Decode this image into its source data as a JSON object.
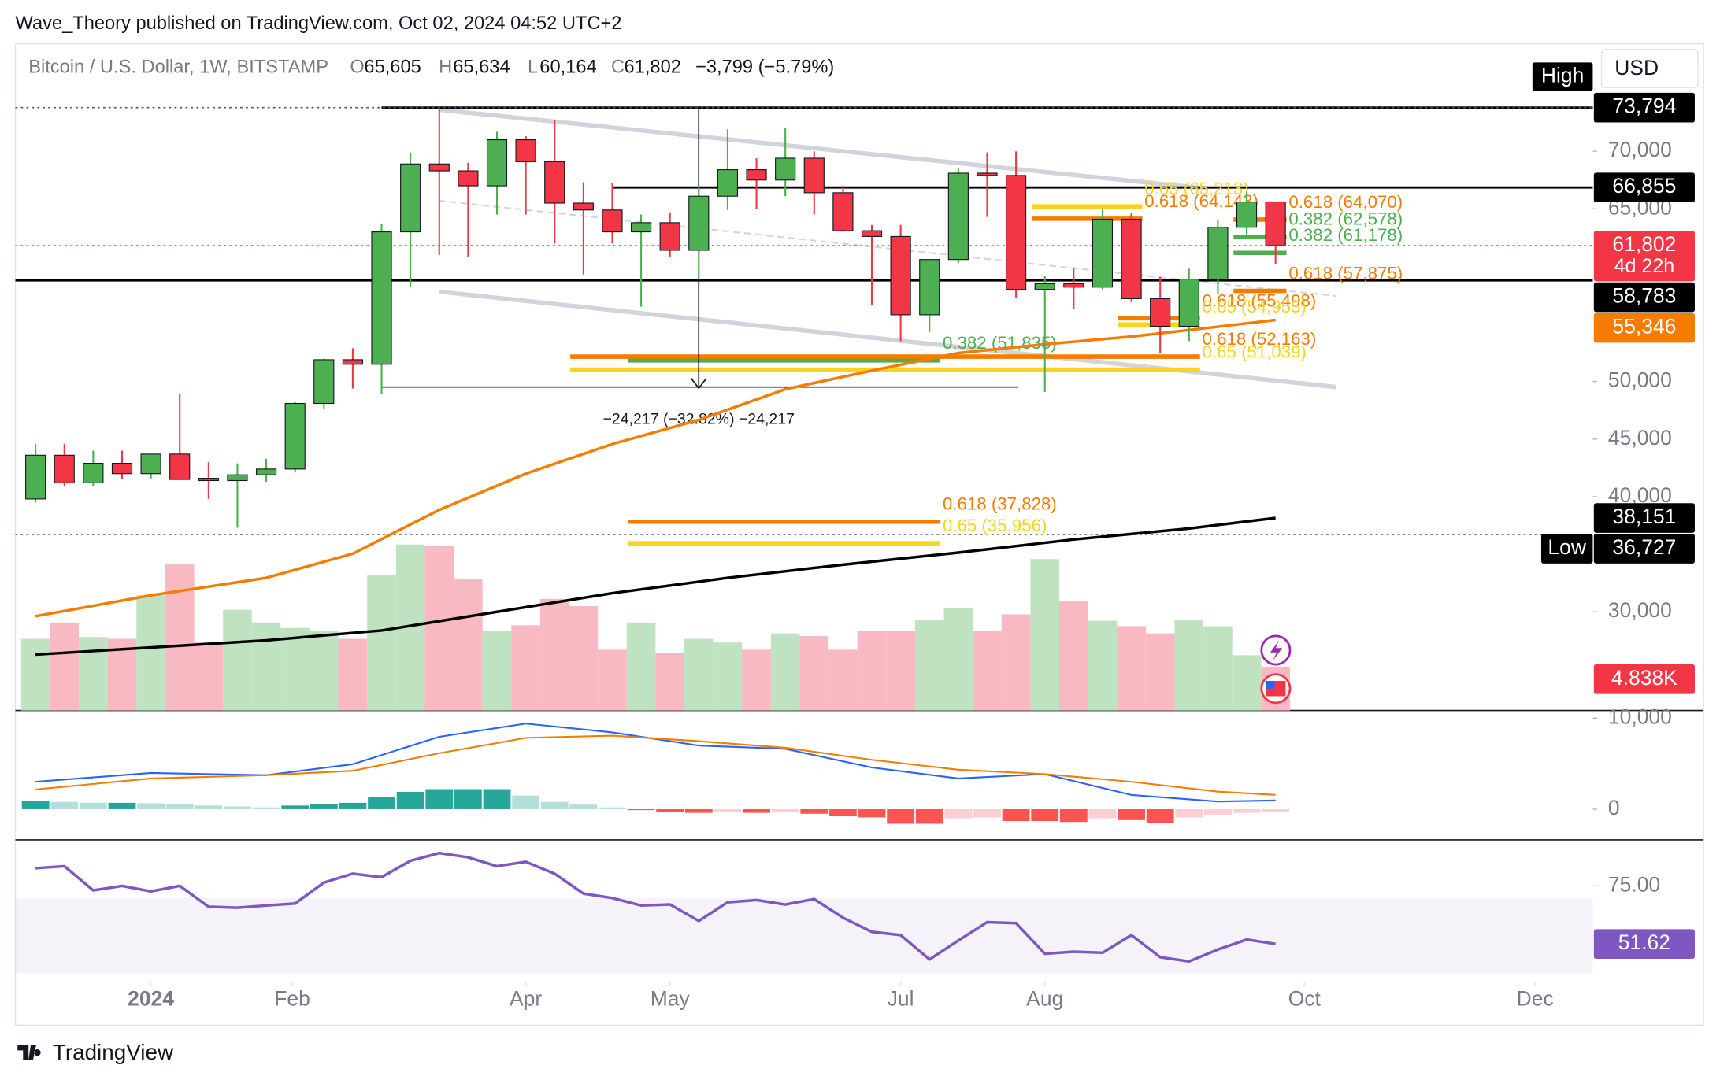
{
  "header": {
    "byline": "Wave_Theory published on TradingView.com, Oct 02, 2024 04:52 UTC+2"
  },
  "legend": {
    "symbol": "Bitcoin / U.S. Dollar, 1W, BITSTAMP",
    "o_label": "O",
    "o": "65,605",
    "h_label": "H",
    "h": "65,634",
    "l_label": "L",
    "l": "60,164",
    "c_label": "C",
    "c": "61,802",
    "change": "−3,799 (−5.79%)"
  },
  "currency": "USD",
  "footer": {
    "brand": "TradingView"
  },
  "chart_data": [
    {
      "type": "candlestick",
      "x": [
        0,
        1,
        2,
        3,
        4,
        5,
        6,
        7,
        8,
        9,
        10,
        11,
        12,
        13,
        14,
        15,
        16,
        17,
        18,
        19,
        20,
        21,
        22,
        23,
        24,
        25,
        26,
        27,
        28,
        29,
        30,
        31,
        32,
        33,
        34,
        35,
        36,
        37,
        38,
        39,
        40,
        41,
        42,
        43
      ],
      "open": [
        39800,
        43600,
        41200,
        42900,
        42000,
        43700,
        41600,
        41400,
        41900,
        42400,
        48100,
        51900,
        51500,
        63000,
        68900,
        68300,
        67000,
        71000,
        69100,
        65500,
        64900,
        63000,
        63800,
        61400,
        66100,
        68400,
        67500,
        69400,
        66400,
        63100,
        62600,
        55800,
        60600,
        68100,
        67900,
        58000,
        58500,
        58200,
        64100,
        57200,
        54800,
        58900,
        63400,
        65605
      ],
      "high": [
        44600,
        44600,
        44000,
        44000,
        43700,
        48900,
        43000,
        42900,
        43300,
        48200,
        52000,
        52900,
        63700,
        69900,
        73794,
        69000,
        71700,
        71300,
        72700,
        67300,
        67200,
        64500,
        64700,
        67000,
        71900,
        69400,
        72000,
        70000,
        67000,
        63600,
        63600,
        60600,
        68500,
        69900,
        70000,
        59200,
        59800,
        65000,
        64600,
        59100,
        59800,
        64100,
        66500,
        65634
      ],
      "low": [
        39500,
        40900,
        40900,
        41500,
        41500,
        41500,
        39800,
        37300,
        41300,
        42100,
        47600,
        49400,
        48900,
        58200,
        61000,
        60800,
        64500,
        64500,
        62000,
        59300,
        62000,
        56500,
        60800,
        59000,
        64900,
        65000,
        66100,
        64500,
        63000,
        56600,
        53500,
        54300,
        60300,
        64300,
        57300,
        49100,
        56300,
        58000,
        56900,
        52500,
        53500,
        57600,
        62400,
        60164
      ],
      "close": [
        43600,
        41200,
        42900,
        42000,
        43700,
        41500,
        41400,
        41900,
        42400,
        48100,
        51900,
        51500,
        63000,
        68900,
        68300,
        67000,
        71000,
        69100,
        65500,
        64900,
        63000,
        63800,
        61400,
        66100,
        68400,
        67500,
        69400,
        66400,
        63100,
        62600,
        55800,
        60600,
        68100,
        67900,
        58000,
        58500,
        58200,
        64100,
        57200,
        54800,
        58900,
        63400,
        65600,
        61802
      ],
      "up_color": "#4caf50",
      "down_color": "#f23645",
      "xlim": [
        -0.7,
        54
      ],
      "xticks": [
        {
          "value": 4,
          "label": "2024"
        },
        {
          "value": 8.9,
          "label": "Feb"
        },
        {
          "value": 17,
          "label": "Apr"
        },
        {
          "value": 22,
          "label": "May"
        },
        {
          "value": 30,
          "label": "Jul"
        },
        {
          "value": 35,
          "label": "Aug"
        },
        {
          "value": 44,
          "label": "Oct"
        },
        {
          "value": 52,
          "label": "Dec"
        }
      ],
      "ylim": [
        21430,
        79330
      ],
      "yticks": [
        {
          "value": 70000,
          "label": "70,000"
        },
        {
          "value": 65000,
          "label": "65,000"
        },
        {
          "value": 50000,
          "label": "50,000"
        },
        {
          "value": 45000,
          "label": "45,000"
        },
        {
          "value": 40000,
          "label": "40,000"
        },
        {
          "value": 30000,
          "label": "30,000"
        }
      ],
      "lines": [
        {
          "color": "#f57c00",
          "x": [
            0,
            4,
            8,
            11,
            14,
            17,
            20,
            23,
            26,
            29,
            32,
            35,
            38,
            41,
            43
          ],
          "values": [
            29619,
            31429,
            32952,
            35048,
            38857,
            42000,
            44571,
            46667,
            49333,
            50952,
            52476,
            53238,
            53905,
            54762,
            55346
          ]
        },
        {
          "color": "#000000",
          "x": [
            0,
            8,
            12,
            16,
            20,
            24,
            28,
            32,
            36,
            40,
            43
          ],
          "values": [
            26286,
            27524,
            28381,
            30000,
            31619,
            32952,
            34095,
            35143,
            36286,
            37238,
            38151
          ]
        }
      ],
      "volume": {
        "values": [
          7.9,
          9.7,
          8.1,
          7.9,
          12.7,
          16.1,
          7.5,
          11.1,
          9.7,
          9.1,
          8.8,
          7.9,
          14.9,
          18.3,
          18.2,
          14.5,
          8.8,
          9.4,
          12.3,
          11.5,
          6.7,
          9.7,
          6.3,
          7.9,
          7.5,
          6.7,
          8.5,
          8.2,
          6.7,
          8.8,
          8.8,
          10.0,
          11.3,
          8.8,
          10.6,
          16.7,
          12.1,
          9.9,
          9.3,
          8.5,
          10.0,
          9.3,
          6.1,
          4.838
        ],
        "ylim": [
          0,
          73.5
        ],
        "up_color": "#bfe3c1",
        "down_color": "#f8b9c2",
        "label": "4.838K"
      },
      "hlines": [
        {
          "value": 73794,
          "from": 12,
          "style": "solid",
          "color": "#000000"
        },
        {
          "value": 66855,
          "from": 20,
          "style": "solid",
          "color": "#000000"
        },
        {
          "value": 58783,
          "from": -0.7,
          "style": "solid",
          "color": "#000000"
        },
        {
          "value": 73794,
          "from": -0.7,
          "style": "dotted",
          "color": "#555555"
        },
        {
          "value": 36727,
          "from": -0.7,
          "style": "dotted",
          "color": "#555555"
        },
        {
          "value": 61802,
          "from": -0.7,
          "style": "dotted",
          "color": "#f23645"
        }
      ],
      "fib": [
        {
          "label": "0.65 (65,213)",
          "value": 65213,
          "from": 35,
          "to": 38,
          "color": "#f7d51d"
        },
        {
          "label": "0.618 (64,143)",
          "value": 64143,
          "from": 35,
          "to": 38,
          "color": "#f57c00"
        },
        {
          "label": "0.618 (64,070)",
          "value": 64070,
          "from": 42,
          "to": 43,
          "color": "#f57c00"
        },
        {
          "label": "0.382 (62,578)",
          "value": 62578,
          "from": 42,
          "to": 43,
          "color": "#4caf50"
        },
        {
          "label": "0.382 (61,178)",
          "value": 61178,
          "from": 42,
          "to": 43,
          "color": "#4caf50"
        },
        {
          "label": "0.618 (57,875)",
          "value": 57875,
          "from": 42,
          "to": 43,
          "color": "#f57c00"
        },
        {
          "label": "0.618 (55,498)",
          "value": 55498,
          "from": 38,
          "to": 40,
          "color": "#f57c00"
        },
        {
          "label": "0.65 (54,955)",
          "value": 54955,
          "from": 38,
          "to": 40,
          "color": "#f7d51d"
        },
        {
          "label": "0.382 (51,835)",
          "value": 51835,
          "from": 21,
          "to": 31,
          "color": "#4caf50"
        },
        {
          "label": "0.618 (52,163)",
          "value": 52163,
          "from": 19,
          "to": 40,
          "color": "#f57c00"
        },
        {
          "label": "0.65 (51,039)",
          "value": 51039,
          "from": 19,
          "to": 40,
          "color": "#f7d51d"
        },
        {
          "label": "0.618 (37,828)",
          "value": 37828,
          "from": 21,
          "to": 31,
          "color": "#f57c00"
        },
        {
          "label": "0.65 (35,956)",
          "value": 35956,
          "from": 21,
          "to": 31,
          "color": "#f7d51d"
        }
      ],
      "price_labels": [
        {
          "value": 73794,
          "label": "73,794",
          "color": "#000000"
        },
        {
          "value": 66855,
          "label": "66,855",
          "color": "#000000"
        },
        {
          "value": 61802,
          "label": "61,802",
          "color": "#f23645",
          "note": "4d 22h"
        },
        {
          "value": 58783,
          "label": "58,783",
          "color": "#000000"
        },
        {
          "value": 55346,
          "label": "55,346",
          "color": "#f57c00"
        },
        {
          "value": 38151,
          "label": "38,151",
          "color": "#000000"
        },
        {
          "value": 36727,
          "label": "36,727",
          "color": "#000000"
        }
      ],
      "high_label": "High",
      "low_label": "Low",
      "measure": "−24,217 (−32.82%) −24,217"
    },
    {
      "type": "macd",
      "histogram": [
        900,
        800,
        700,
        700,
        650,
        600,
        400,
        300,
        200,
        400,
        600,
        700,
        1300,
        1900,
        2200,
        2200,
        2200,
        1500,
        800,
        500,
        200,
        -100,
        -300,
        -400,
        -300,
        -400,
        -300,
        -500,
        -700,
        -900,
        -1600,
        -1600,
        -1000,
        -900,
        -1300,
        -1300,
        -1400,
        -1000,
        -1200,
        -1500,
        -900,
        -600,
        -400,
        -300
      ],
      "hist_colors": [
        "#26a69a",
        "#b2dfdb",
        "#ff5252",
        "#ffcdd2"
      ],
      "series": [
        {
          "color": "#2962ff",
          "x": [
            0,
            4,
            8,
            11,
            14,
            17,
            20,
            23,
            26,
            29,
            32,
            35,
            38,
            41,
            43
          ],
          "values": [
            3012,
            3976,
            3735,
            4940,
            7952,
            9398,
            8434,
            6988,
            6627,
            4578,
            3373,
            3855,
            1566,
            843,
            964
          ]
        },
        {
          "color": "#f57c00",
          "x": [
            0,
            4,
            8,
            11,
            14,
            17,
            20,
            23,
            26,
            29,
            32,
            35,
            38,
            41,
            43
          ],
          "values": [
            2169,
            3373,
            3735,
            4217,
            6145,
            7831,
            8072,
            7470,
            6747,
            5422,
            4337,
            3855,
            3012,
            1928,
            1566
          ]
        }
      ],
      "ylim": [
        -3370,
        10840
      ],
      "yticks": [
        {
          "value": 10000,
          "label": "10,000"
        },
        0
      ]
    },
    {
      "type": "line",
      "values": [
        82.1,
        82.9,
        73.2,
        75.0,
        72.8,
        75.0,
        66.6,
        66.2,
        67.1,
        67.9,
        76.3,
        79.9,
        78.5,
        85.1,
        88.2,
        86.5,
        82.9,
        84.7,
        79.9,
        71.9,
        70.1,
        67.1,
        67.5,
        60.9,
        68.4,
        69.3,
        67.5,
        69.7,
        62.2,
        56.5,
        55.2,
        45.4,
        53.0,
        60.4,
        60.0,
        47.7,
        48.5,
        48.1,
        55.2,
        46.3,
        44.6,
        49.4,
        53.4,
        51.62
      ],
      "color": "#7e57c2",
      "band": [
        40,
        70
      ],
      "ylim": [
        36.6,
        93.5
      ],
      "yticks": [
        {
          "value": 75,
          "label": "75.00"
        }
      ],
      "value_label": "51.62"
    }
  ]
}
